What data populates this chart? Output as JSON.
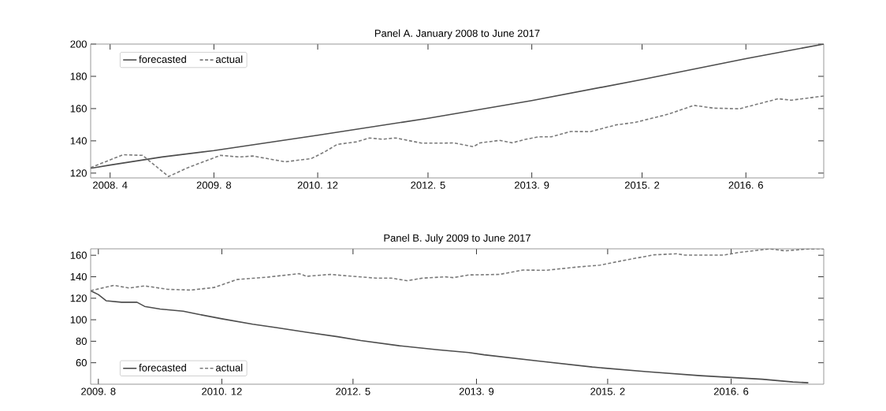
{
  "chart_data": [
    {
      "type": "line",
      "title": "Panel A. January 2008 to June 2017",
      "xlim": [
        "2008-01",
        "2017-06"
      ],
      "ylim": [
        117,
        200
      ],
      "xticks": [
        {
          "value": "2008-04",
          "label": "2008. 4"
        },
        {
          "value": "2009-08",
          "label": "2009. 8"
        },
        {
          "value": "2010-12",
          "label": "2010. 12"
        },
        {
          "value": "2012-05",
          "label": "2012. 5"
        },
        {
          "value": "2013-09",
          "label": "2013. 9"
        },
        {
          "value": "2015-02",
          "label": "2015. 2"
        },
        {
          "value": "2016-06",
          "label": "2016. 6"
        }
      ],
      "yticks": [
        120,
        140,
        160,
        180,
        200
      ],
      "legend": "top left",
      "marker": "none",
      "series": [
        {
          "name": "forecasted",
          "color": "#4d4d4d",
          "line_style": "solid",
          "x": [
            "2008-01",
            "2008-04",
            "2008-12",
            "2009-08",
            "2010-12",
            "2012-05",
            "2013-09",
            "2015-02",
            "2016-06",
            "2017-06"
          ],
          "values": [
            123,
            125,
            130,
            134,
            143.5,
            154,
            165,
            178,
            191,
            200
          ]
        },
        {
          "name": "actual",
          "color": "#7a7a7a",
          "line_style": "dashed",
          "x": [
            "2008-01",
            "2008-06",
            "2008-09",
            "2009-01",
            "2009-04",
            "2009-09",
            "2009-12",
            "2010-02",
            "2010-07",
            "2010-11",
            "2011-01",
            "2011-03",
            "2011-06",
            "2011-08",
            "2011-10",
            "2011-12",
            "2012-02",
            "2012-04",
            "2012-07",
            "2012-09",
            "2012-12",
            "2013-01",
            "2013-04",
            "2013-06",
            "2013-08",
            "2013-10",
            "2013-12",
            "2014-03",
            "2014-06",
            "2014-10",
            "2015-01",
            "2015-06",
            "2015-10",
            "2016-01",
            "2016-05",
            "2016-11",
            "2017-01",
            "2017-06"
          ],
          "values": [
            123.4,
            131.4,
            131,
            117.9,
            123.4,
            131,
            130,
            130.6,
            127,
            129,
            133,
            137.8,
            139.4,
            141.8,
            141,
            141.8,
            140.2,
            138.6,
            138.6,
            138.7,
            136.4,
            138.7,
            140.3,
            138.8,
            140.9,
            142.5,
            142.5,
            145.8,
            145.7,
            149.9,
            151.5,
            156.5,
            162,
            160.3,
            159.9,
            166.1,
            165.2,
            167.8
          ]
        }
      ]
    },
    {
      "type": "line",
      "title": "Panel B. July 2009 to June 2017",
      "xlim": [
        "2009-07",
        "2017-06"
      ],
      "ylim": [
        40,
        166
      ],
      "xticks": [
        {
          "value": "2009-08",
          "label": "2009. 8"
        },
        {
          "value": "2010-12",
          "label": "2010. 12"
        },
        {
          "value": "2012-05",
          "label": "2012. 5"
        },
        {
          "value": "2013-09",
          "label": "2013. 9"
        },
        {
          "value": "2015-02",
          "label": "2015. 2"
        },
        {
          "value": "2016-06",
          "label": "2016. 6"
        }
      ],
      "yticks": [
        60,
        80,
        100,
        120,
        140,
        160
      ],
      "legend": "bottom left",
      "marker": "none",
      "series": [
        {
          "name": "forecasted",
          "color": "#4d4d4d",
          "line_style": "solid",
          "x": [
            "2009-07",
            "2009-08",
            "2009-09",
            "2009-11",
            "2010-01",
            "2010-02",
            "2010-04",
            "2010-07",
            "2010-09",
            "2010-12",
            "2011-04",
            "2011-07",
            "2011-11",
            "2012-03",
            "2012-06",
            "2012-11",
            "2013-04",
            "2013-08",
            "2013-10",
            "2014-05",
            "2014-12",
            "2015-07",
            "2016-02",
            "2016-10",
            "2017-02",
            "2017-04"
          ],
          "values": [
            127,
            123.4,
            117.7,
            116.3,
            116.3,
            112.4,
            110,
            108,
            105,
            100.9,
            95.8,
            92.8,
            88.4,
            84.2,
            80.6,
            75.8,
            72.1,
            69.5,
            67.4,
            61.6,
            56,
            51.7,
            48,
            44.7,
            42.1,
            41.4
          ]
        },
        {
          "name": "actual",
          "color": "#7a7a7a",
          "line_style": "dashed",
          "x": [
            "2009-07",
            "2009-10",
            "2009-12",
            "2010-02",
            "2010-05",
            "2010-08",
            "2010-11",
            "2011-02",
            "2011-06",
            "2011-10",
            "2011-11",
            "2012-02",
            "2012-05",
            "2012-08",
            "2012-10",
            "2012-12",
            "2013-02",
            "2013-05",
            "2013-06",
            "2013-08",
            "2013-10",
            "2013-12",
            "2014-03",
            "2014-06",
            "2014-10",
            "2015-01",
            "2015-04",
            "2015-08",
            "2015-11",
            "2015-12",
            "2016-05",
            "2016-07",
            "2016-11",
            "2017-01",
            "2017-04",
            "2017-06"
          ],
          "values": [
            127,
            132,
            129.5,
            131.5,
            128.3,
            127.6,
            130,
            137.5,
            139.7,
            142.9,
            140.4,
            142.2,
            140.4,
            138.7,
            138.7,
            136.3,
            138.7,
            139.9,
            139.2,
            141.7,
            141.9,
            142.2,
            146.2,
            146,
            149,
            150.8,
            155.1,
            160.4,
            161.4,
            160.1,
            160.1,
            162.6,
            165.9,
            164.1,
            165.9,
            166
          ]
        }
      ]
    }
  ]
}
